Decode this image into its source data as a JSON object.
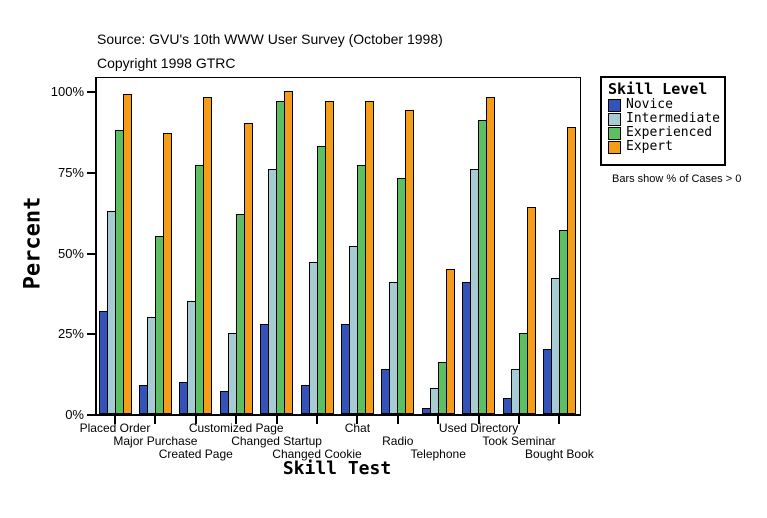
{
  "header": {
    "source": "Source: GVU's 10th WWW User Survey (October 1998)",
    "copyright": "Copyright 1998 GTRC"
  },
  "legend": {
    "title": "Skill Level",
    "note": "Bars show % of Cases > 0",
    "items": [
      {
        "label": "Novice",
        "color": "#3453b8"
      },
      {
        "label": "Intermediate",
        "color": "#a6cbd3"
      },
      {
        "label": "Experienced",
        "color": "#5dbf62"
      },
      {
        "label": "Expert",
        "color": "#f59c18"
      }
    ]
  },
  "y_axis": {
    "label": "Percent",
    "ticks": [
      {
        "value": 0,
        "label": "0%"
      },
      {
        "value": 25,
        "label": "25%"
      },
      {
        "value": 50,
        "label": "50%"
      },
      {
        "value": 75,
        "label": "75%"
      },
      {
        "value": 100,
        "label": "100%"
      }
    ]
  },
  "chart_data": {
    "type": "bar",
    "title": "Skill Test",
    "xlabel": "Skill Test",
    "ylabel": "Percent",
    "ylim": [
      0,
      100
    ],
    "grid": false,
    "legend_position": "right",
    "categories": [
      "Placed Order",
      "Major Purchase",
      "Created Page",
      "Customized Page",
      "Changed Startup",
      "Changed Cookie",
      "Chat",
      "Radio",
      "Telephone",
      "Used Directory",
      "Took Seminar",
      "Bought Book"
    ],
    "series": [
      {
        "name": "Novice",
        "color": "#3453b8",
        "values": [
          32,
          9,
          10,
          7,
          28,
          9,
          28,
          14,
          2,
          41,
          5,
          20
        ]
      },
      {
        "name": "Intermediate",
        "color": "#a6cbd3",
        "values": [
          63,
          30,
          35,
          25,
          76,
          47,
          52,
          41,
          8,
          76,
          14,
          42
        ]
      },
      {
        "name": "Experienced",
        "color": "#5dbf62",
        "values": [
          88,
          55,
          77,
          62,
          97,
          83,
          77,
          73,
          16,
          91,
          25,
          57
        ]
      },
      {
        "name": "Expert",
        "color": "#f59c18",
        "values": [
          99,
          87,
          98,
          90,
          100,
          97,
          97,
          94,
          45,
          98,
          64,
          89
        ]
      }
    ]
  }
}
